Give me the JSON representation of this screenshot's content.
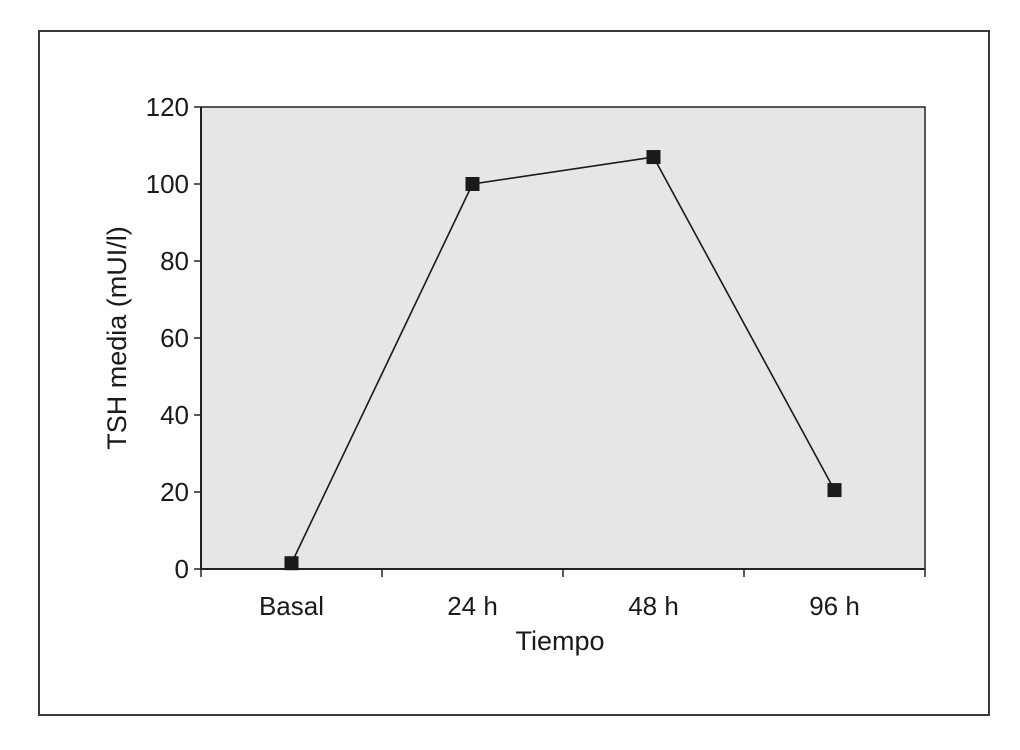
{
  "chart_data": {
    "type": "line",
    "title": "",
    "xlabel": "Tiempo",
    "ylabel": "TSH media (mUI/l)",
    "categories": [
      "Basal",
      "24 h",
      "48 h",
      "96 h"
    ],
    "series": [
      {
        "values": [
          1.5,
          100,
          107,
          20.5
        ]
      }
    ],
    "ylim": [
      0,
      120
    ],
    "yticks": [
      0,
      20,
      40,
      60,
      80,
      100,
      120
    ],
    "ytick_labels": [
      "0",
      "20",
      "40",
      "60",
      "80",
      "100",
      "120"
    ],
    "grid": false,
    "legend": "none",
    "colors": {
      "plot_background": "#e6e6e6",
      "line": "#1a1a1a",
      "marker": "#1a1a1a",
      "frame": "#3a3a3a"
    }
  }
}
